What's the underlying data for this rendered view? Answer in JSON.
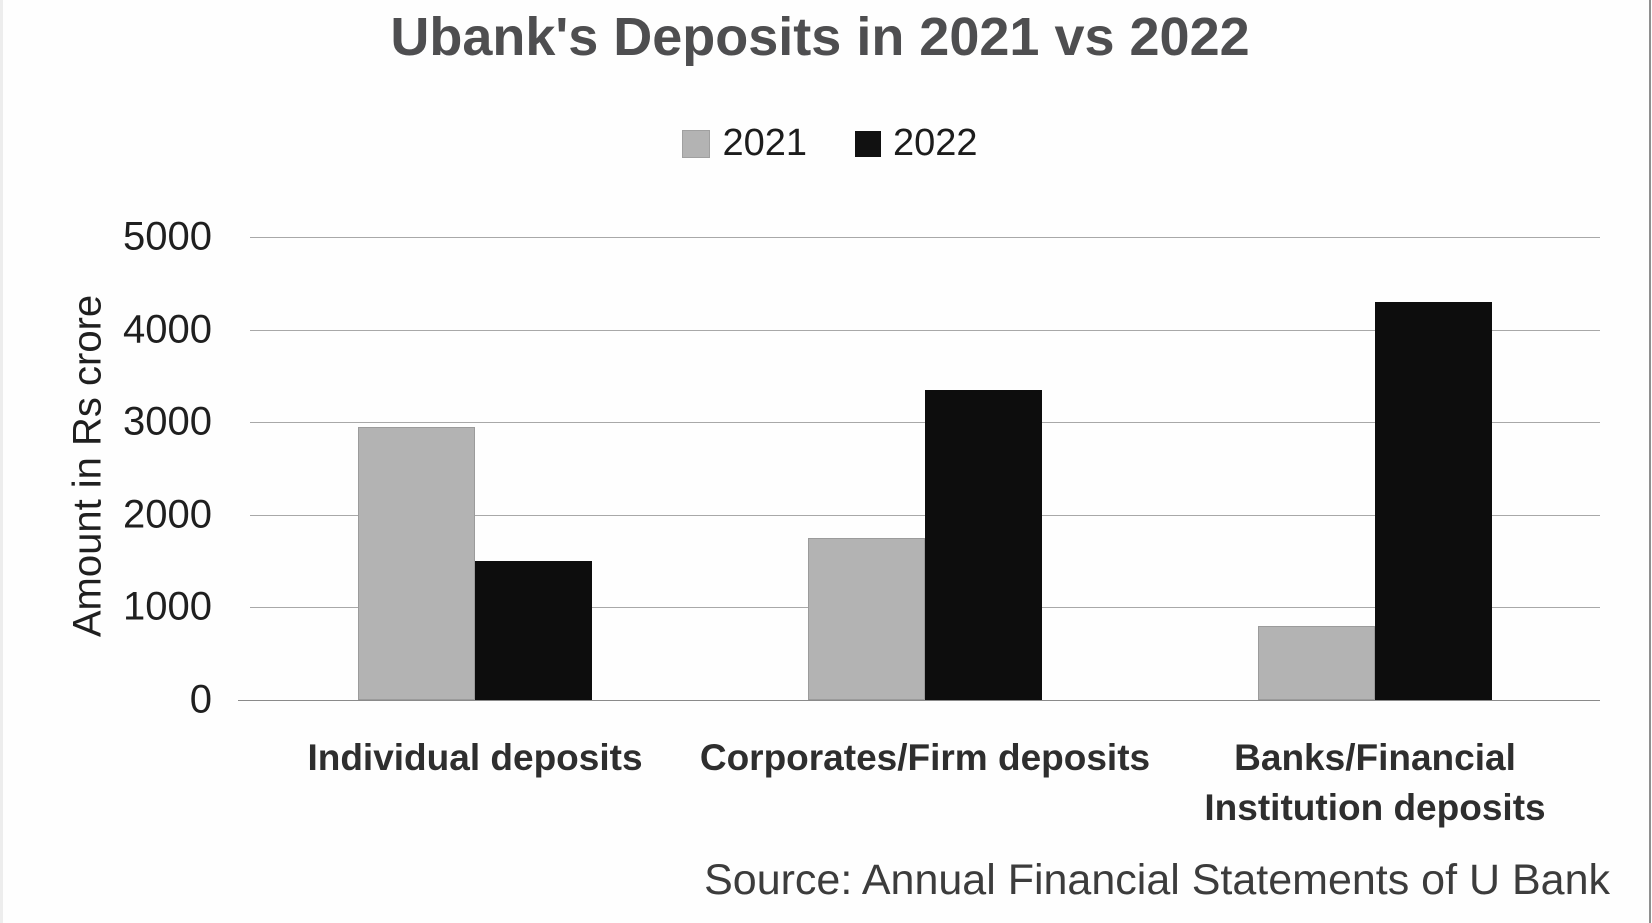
{
  "source_note": "Source: Annual Financial Statements of U Bank",
  "colors": {
    "series_2021": "#b3b3b3",
    "series_2022": "#0d0d0d",
    "gridline": "#a8a8a8",
    "baseline": "#8a8a8a",
    "title_text": "#4e4e50",
    "axis_text": "#1f1f1f",
    "category_text": "#2e2e2e",
    "source_text": "#3c3c3c",
    "background": "#ffffff"
  },
  "chart_data": {
    "type": "bar",
    "title": "Ubank's Deposits in 2021 vs 2022",
    "categories": [
      "Individual deposits",
      "Corporates/Firm deposits",
      "Banks/Financial\nInstitution deposits"
    ],
    "series": [
      {
        "name": "2021",
        "color": "#b3b3b3",
        "values": [
          2950,
          1750,
          800
        ]
      },
      {
        "name": "2022",
        "color": "#0d0d0d",
        "values": [
          1500,
          3350,
          4300
        ]
      }
    ],
    "xlabel": "",
    "ylabel": "Amount in Rs crore",
    "ylim": [
      0,
      5000
    ],
    "yticks": [
      0,
      1000,
      2000,
      3000,
      4000,
      5000
    ],
    "grid": true,
    "legend_position": "top-center"
  }
}
